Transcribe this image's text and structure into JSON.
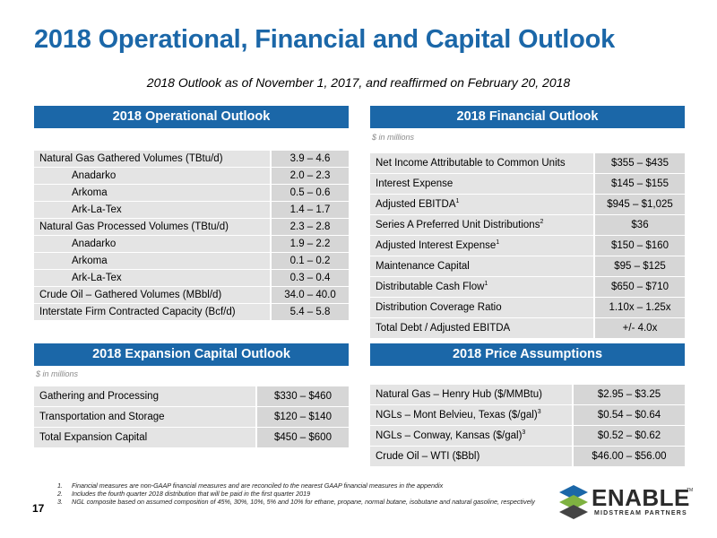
{
  "title": "2018 Operational, Financial and Capital Outlook",
  "subtitle": "2018 Outlook as of November 1, 2017, and reaffirmed on February 20, 2018",
  "operational": {
    "header": "2018 Operational Outlook",
    "rows": [
      {
        "label": "Natural Gas Gathered Volumes (TBtu/d)",
        "value": "3.9 – 4.6"
      },
      {
        "label": "Anadarko",
        "value": "2.0 – 2.3"
      },
      {
        "label": "Arkoma",
        "value": "0.5 – 0.6"
      },
      {
        "label": "Ark-La-Tex",
        "value": "1.4 – 1.7"
      },
      {
        "label": "Natural Gas Processed Volumes (TBtu/d)",
        "value": "2.3 – 2.8"
      },
      {
        "label": "Anadarko",
        "value": "1.9 – 2.2"
      },
      {
        "label": "Arkoma",
        "value": "0.1 – 0.2"
      },
      {
        "label": "Ark-La-Tex",
        "value": "0.3 – 0.4"
      },
      {
        "label": "Crude Oil – Gathered Volumes (MBbl/d)",
        "value": "34.0 – 40.0"
      },
      {
        "label": "Interstate Firm Contracted Capacity (Bcf/d)",
        "value": "5.4 – 5.8"
      }
    ]
  },
  "financial": {
    "header": "2018 Financial Outlook",
    "units": "$ in millions",
    "rows": [
      {
        "label": "Net Income Attributable to Common Units",
        "sup": "",
        "value": "$355 – $435"
      },
      {
        "label": "Interest Expense",
        "sup": "",
        "value": "$145 – $155"
      },
      {
        "label": "Adjusted EBITDA",
        "sup": "1",
        "value": "$945 – $1,025"
      },
      {
        "label": "Series A Preferred Unit Distributions",
        "sup": "2",
        "value": "$36"
      },
      {
        "label": "Adjusted Interest Expense",
        "sup": "1",
        "value": "$150 – $160"
      },
      {
        "label": "Maintenance Capital",
        "sup": "",
        "value": "$95 – $125"
      },
      {
        "label": "Distributable Cash Flow",
        "sup": "1",
        "value": "$650 – $710"
      },
      {
        "label": "Distribution Coverage Ratio",
        "sup": "",
        "value": "1.10x – 1.25x"
      },
      {
        "label": "Total Debt / Adjusted EBITDA",
        "sup": "",
        "value": "+/- 4.0x"
      }
    ]
  },
  "expansion": {
    "header": "2018 Expansion Capital Outlook",
    "units": "$ in millions",
    "rows": [
      {
        "label": "Gathering and Processing",
        "value": "$330 – $460"
      },
      {
        "label": "Transportation and Storage",
        "value": "$120 – $140"
      },
      {
        "label": "Total Expansion Capital",
        "value": "$450 – $600"
      }
    ]
  },
  "prices": {
    "header": "2018 Price Assumptions",
    "rows": [
      {
        "label": "Natural Gas – Henry Hub ($/MMBtu)",
        "sup": "",
        "value": "$2.95 – $3.25"
      },
      {
        "label": "NGLs – Mont Belvieu, Texas ($/gal)",
        "sup": "3",
        "value": "$0.54 – $0.64"
      },
      {
        "label": "NGLs – Conway, Kansas ($/gal)",
        "sup": "3",
        "value": "$0.52 – $0.62"
      },
      {
        "label": "Crude Oil – WTI ($Bbl)",
        "sup": "",
        "value": "$46.00 – $56.00"
      }
    ]
  },
  "footnotes": [
    {
      "num": "1.",
      "text": "Financial measures are non-GAAP financial measures and are reconciled to the nearest GAAP financial measures in the appendix"
    },
    {
      "num": "2.",
      "text": "Includes the fourth quarter 2018 distribution that will be paid in the first quarter 2019"
    },
    {
      "num": "3.",
      "text": "NGL composite based on assumed composition of 45%, 30%, 10%, 5% and 10% for ethane, propane, normal butane, isobutane and natural gasoline, respectively"
    }
  ],
  "page_number": "17",
  "logo": {
    "word": "ENABLE",
    "tm": "TM",
    "tagline": "MIDSTREAM PARTNERS",
    "colors": [
      "#1b67a8",
      "#7fb241",
      "#444444"
    ]
  }
}
